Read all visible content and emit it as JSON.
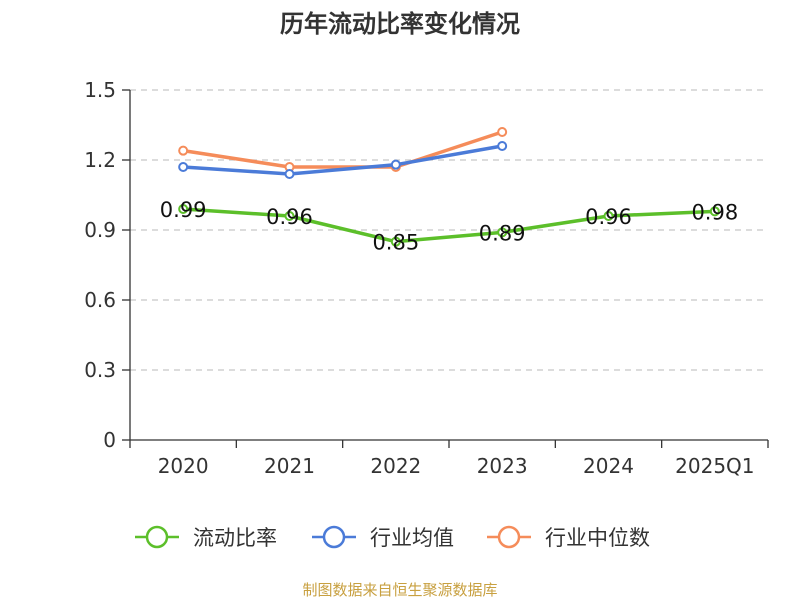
{
  "chart_data": {
    "type": "line",
    "title": "历年流动比率变化情况",
    "categories": [
      "2020",
      "2021",
      "2022",
      "2023",
      "2024",
      "2025Q1"
    ],
    "ylim": [
      0,
      1.5
    ],
    "yticks": [
      "0",
      "0.3",
      "0.6",
      "0.9",
      "1.2",
      "1.5"
    ],
    "grid": true,
    "legend_position": "bottom",
    "series": [
      {
        "name": "流动比率",
        "color": "#5cbf2a",
        "values": [
          0.99,
          0.96,
          0.85,
          0.89,
          0.96,
          0.98
        ],
        "labels": [
          "0.99",
          "0.96",
          "0.85",
          "0.89",
          "0.96",
          "0.98"
        ]
      },
      {
        "name": "行业均值",
        "color": "#4b7bd8",
        "values": [
          1.17,
          1.14,
          1.18,
          1.26,
          null,
          null
        ]
      },
      {
        "name": "行业中位数",
        "color": "#f58c5a",
        "values": [
          1.24,
          1.17,
          1.17,
          1.32,
          null,
          null
        ]
      }
    ]
  },
  "footer": {
    "source": "制图数据来自恒生聚源数据库",
    "source_color": "#c8a040"
  }
}
